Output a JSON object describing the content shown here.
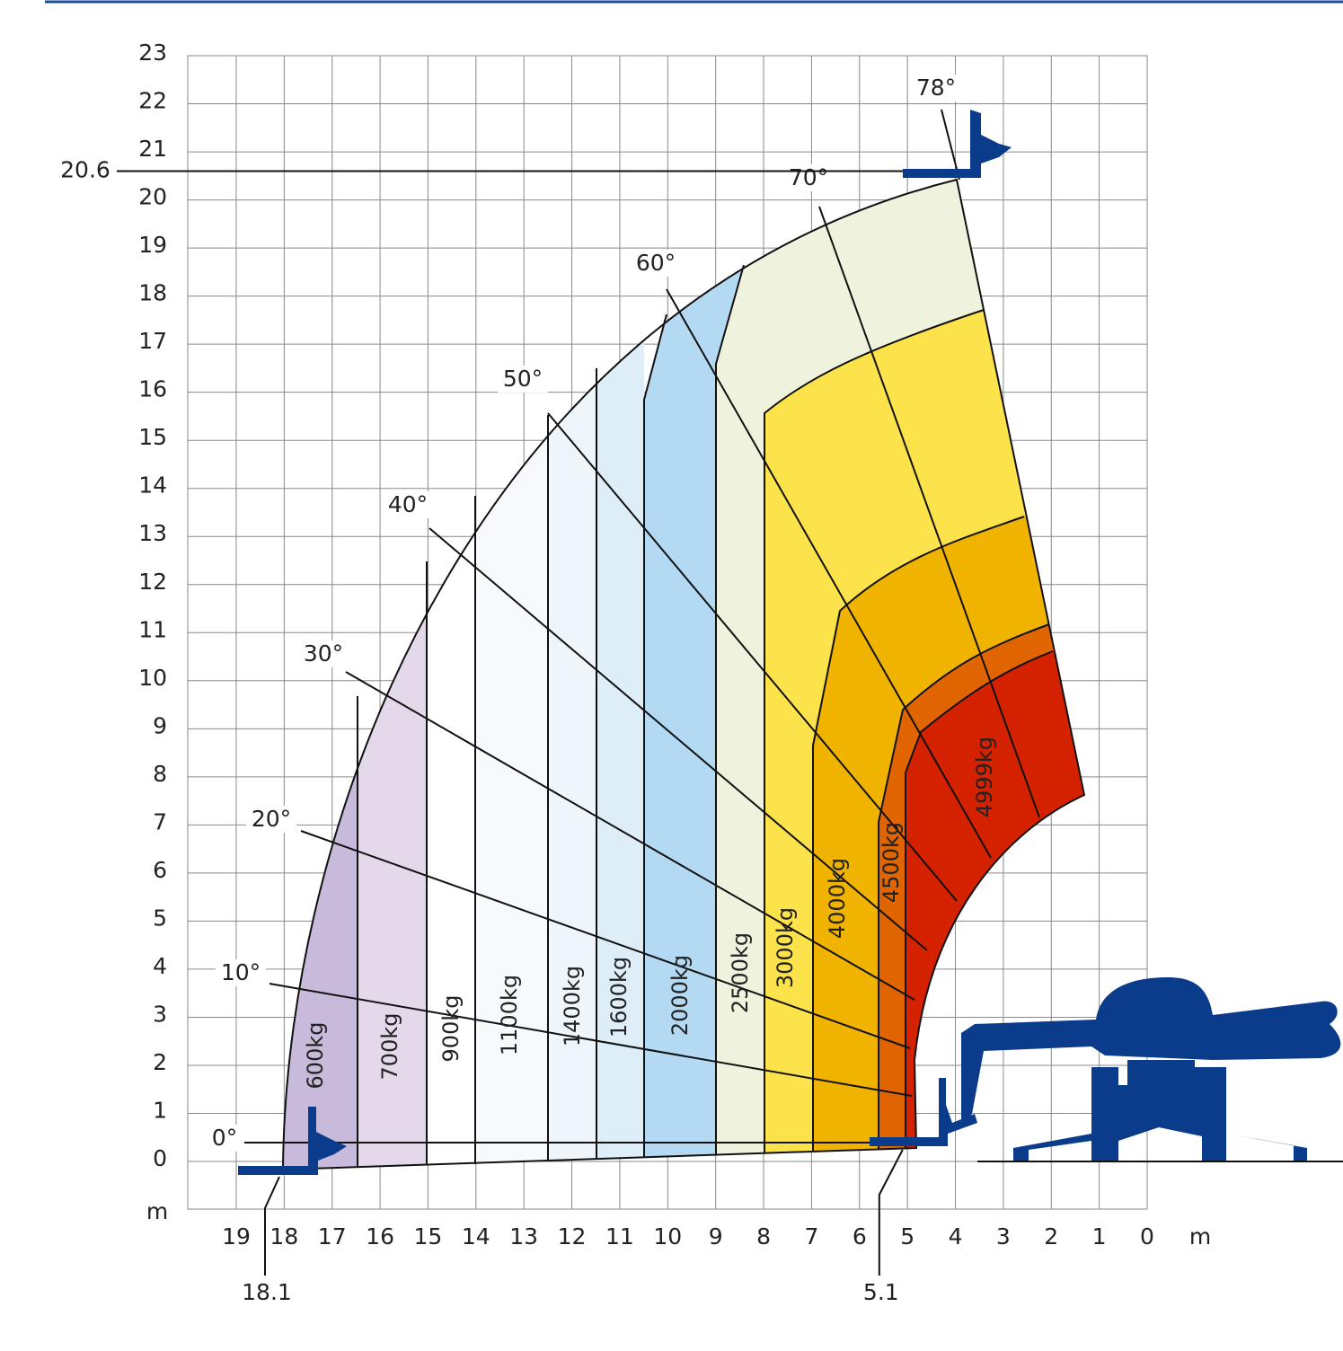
{
  "y_axis": {
    "ticks": [
      0,
      1,
      2,
      3,
      4,
      5,
      6,
      7,
      8,
      9,
      10,
      11,
      12,
      13,
      14,
      15,
      16,
      17,
      18,
      19,
      20,
      21,
      22,
      23
    ],
    "unit": "m"
  },
  "x_axis": {
    "ticks": [
      19,
      18,
      17,
      16,
      15,
      14,
      13,
      12,
      11,
      10,
      9,
      8,
      7,
      6,
      5,
      4,
      3,
      2,
      1,
      0
    ],
    "unit": "m"
  },
  "dimensions": {
    "max_height": 20.6,
    "max_outreach": 18.1,
    "front_outreach": 5.1
  },
  "angles": [
    "0°",
    "10°",
    "20°",
    "30°",
    "40°",
    "50°",
    "60°",
    "70°",
    "78°"
  ],
  "loads": [
    "600kg",
    "700kg",
    "900kg",
    "1100kg",
    "1400kg",
    "1600kg",
    "2000kg",
    "2500kg",
    "3000kg",
    "4000kg",
    "4500kg",
    "4999kg"
  ]
}
